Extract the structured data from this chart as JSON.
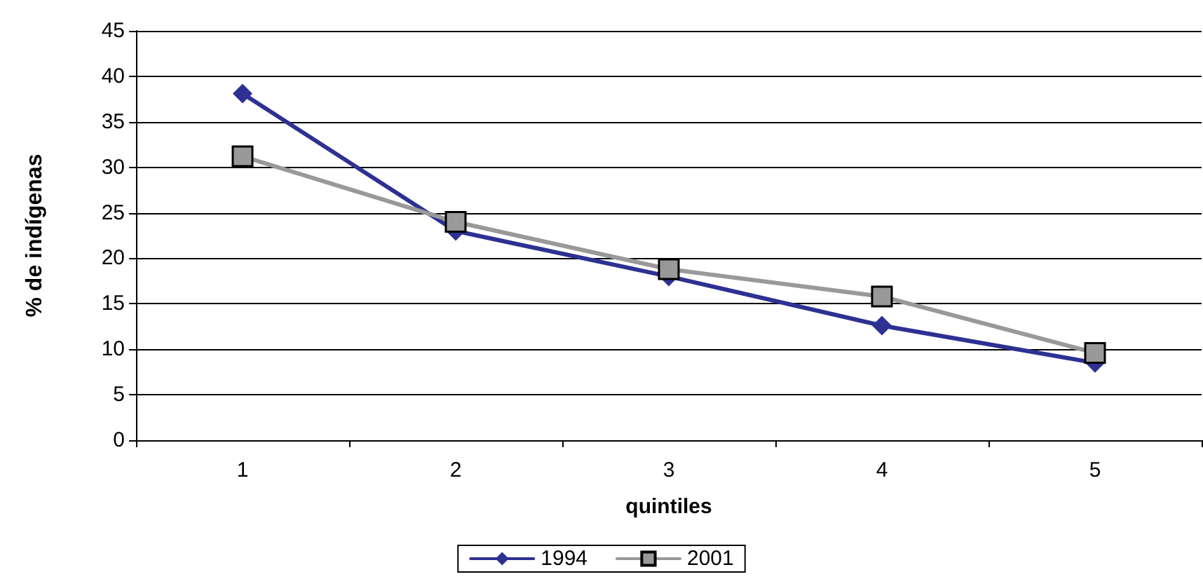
{
  "chart_data": {
    "type": "line",
    "xlabel": "quintiles",
    "ylabel": "% de indígenas",
    "categories": [
      "1",
      "2",
      "3",
      "4",
      "5"
    ],
    "series": [
      {
        "name": "1994",
        "color": "#2e3192",
        "marker": "diamond",
        "values": [
          38.1,
          23.0,
          18.0,
          12.6,
          8.5
        ]
      },
      {
        "name": "2001",
        "color": "#999999",
        "marker": "square",
        "values": [
          31.2,
          24.0,
          18.8,
          15.8,
          9.6
        ]
      }
    ],
    "ylim": [
      0,
      45
    ],
    "yticks": [
      0,
      5,
      10,
      15,
      20,
      25,
      30,
      35,
      40,
      45
    ],
    "grid": "y",
    "legend": "bottom",
    "line_style": "solid"
  }
}
